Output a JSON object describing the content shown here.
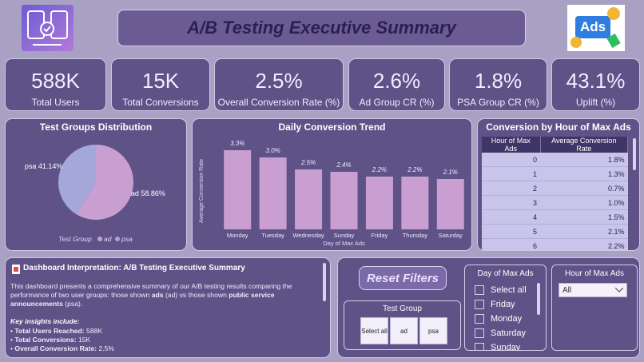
{
  "header": {
    "title": "A/B Testing Executive Summary",
    "ads_icon": "Ads"
  },
  "kpis": [
    {
      "value": "588K",
      "label": "Total Users"
    },
    {
      "value": "15K",
      "label": "Total Conversions"
    },
    {
      "value": "2.5%",
      "label": "Overall Conversion Rate (%)"
    },
    {
      "value": "2.6%",
      "label": "Ad Group CR (%)"
    },
    {
      "value": "1.8%",
      "label": "PSA Group CR (%)"
    },
    {
      "value": "43.1%",
      "label": "Uplift (%)"
    }
  ],
  "chart_data": [
    {
      "type": "pie",
      "title": "Test Groups Distribution",
      "categories": [
        "ad",
        "psa"
      ],
      "values": [
        58.86,
        41.14
      ],
      "value_labels": [
        "58.86%",
        "41.14%"
      ],
      "colors": [
        "#c99fd2",
        "#a3a7d9"
      ],
      "legend_title": "Test Group",
      "legend": "bottom"
    },
    {
      "type": "bar",
      "title": "Daily Conversion Trend",
      "x_label": "Day of Max Ads",
      "y_label": "Average Conversion Rate",
      "categories": [
        "Monday",
        "Tuesday",
        "Wednesday",
        "Sunday",
        "Friday",
        "Thursday",
        "Saturday"
      ],
      "values": [
        3.3,
        3.0,
        2.5,
        2.4,
        2.2,
        2.2,
        2.1
      ],
      "value_labels": [
        "3.3%",
        "3.0%",
        "2.5%",
        "2.4%",
        "2.2%",
        "2.2%",
        "2.1%"
      ],
      "color": "#c99fd2",
      "ylim": [
        0,
        3.6
      ],
      "grid": false
    }
  ],
  "table": {
    "title": "Conversion by Hour of Max Ads",
    "columns": [
      "Hour of Max Ads",
      "Average Conversion Rate"
    ],
    "rows": [
      [
        "0",
        "1.8%"
      ],
      [
        "1",
        "1.3%"
      ],
      [
        "2",
        "0.7%"
      ],
      [
        "3",
        "1.0%"
      ],
      [
        "4",
        "1.5%"
      ],
      [
        "5",
        "2.1%"
      ],
      [
        "6",
        "2.2%"
      ]
    ]
  },
  "interpretation": {
    "title": "Dashboard Interpretation: A/B Testing Executive Summary",
    "paragraph": [
      {
        "text": "This dashboard presents a comprehensive summary of our A/B testing results comparing the performance of two user groups: those shown ",
        "bold": false
      },
      {
        "text": "ads",
        "bold": true
      },
      {
        "text": " (ad) vs those shown ",
        "bold": false
      },
      {
        "text": "public service announcements",
        "bold": true
      },
      {
        "text": " (psa).",
        "bold": false
      }
    ],
    "insights_title": "Key insights include:",
    "insights": [
      {
        "label": "Total Users Reached:",
        "value": "588K"
      },
      {
        "label": "Total Conversions:",
        "value": "15K"
      },
      {
        "label": "Overall Conversion Rate:",
        "value": "2.5%"
      }
    ]
  },
  "filters": {
    "reset": "Reset Filters",
    "test_group": {
      "title": "Test Group",
      "options": [
        "Select all",
        "ad",
        "psa"
      ]
    },
    "day": {
      "title": "Day of Max Ads",
      "options": [
        "Select all",
        "Friday",
        "Monday",
        "Saturday",
        "Sunday"
      ]
    },
    "hour": {
      "title": "Hour of Max Ads",
      "selected": "All"
    }
  }
}
